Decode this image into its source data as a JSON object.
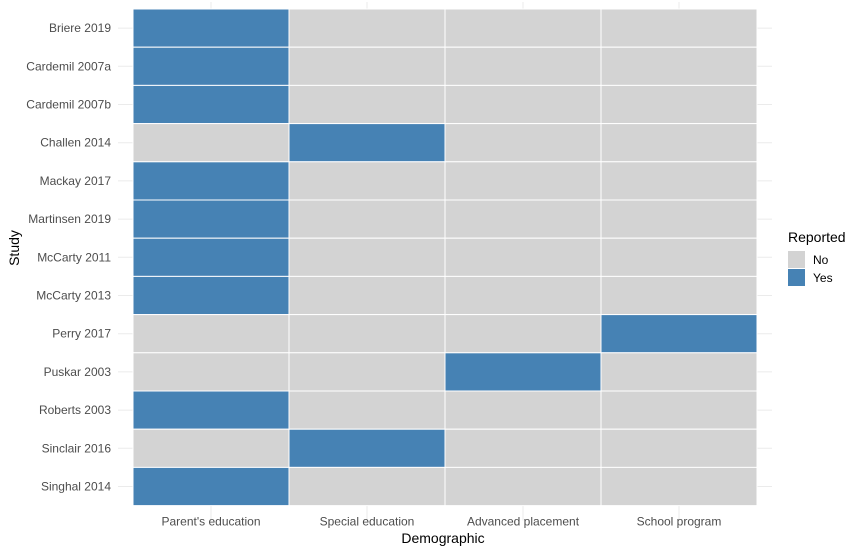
{
  "chart_data": {
    "type": "heatmap",
    "xlabel": "Demographic",
    "ylabel": "Study",
    "x_categories": [
      "Parent's education",
      "Special education",
      "Advanced placement",
      "School program"
    ],
    "y_categories": [
      "Briere 2019",
      "Cardemil 2007a",
      "Cardemil 2007b",
      "Challen 2014",
      "Mackay 2017",
      "Martinsen 2019",
      "McCarty 2011",
      "McCarty 2013",
      "Perry 2017",
      "Puskar 2003",
      "Roberts 2003",
      "Sinclair 2016",
      "Singhal 2014"
    ],
    "values": [
      [
        "Yes",
        "No",
        "No",
        "No"
      ],
      [
        "Yes",
        "No",
        "No",
        "No"
      ],
      [
        "Yes",
        "No",
        "No",
        "No"
      ],
      [
        "No",
        "Yes",
        "No",
        "No"
      ],
      [
        "Yes",
        "No",
        "No",
        "No"
      ],
      [
        "Yes",
        "No",
        "No",
        "No"
      ],
      [
        "Yes",
        "No",
        "No",
        "No"
      ],
      [
        "Yes",
        "No",
        "No",
        "No"
      ],
      [
        "No",
        "No",
        "No",
        "Yes"
      ],
      [
        "No",
        "No",
        "Yes",
        "No"
      ],
      [
        "Yes",
        "No",
        "No",
        "No"
      ],
      [
        "No",
        "Yes",
        "No",
        "No"
      ],
      [
        "Yes",
        "No",
        "No",
        "No"
      ]
    ],
    "legend": {
      "title": "Reported",
      "placement": "right",
      "entries": [
        {
          "label": "No",
          "color": "#d3d3d3"
        },
        {
          "label": "Yes",
          "color": "#4682b4"
        }
      ]
    },
    "grid": true
  }
}
